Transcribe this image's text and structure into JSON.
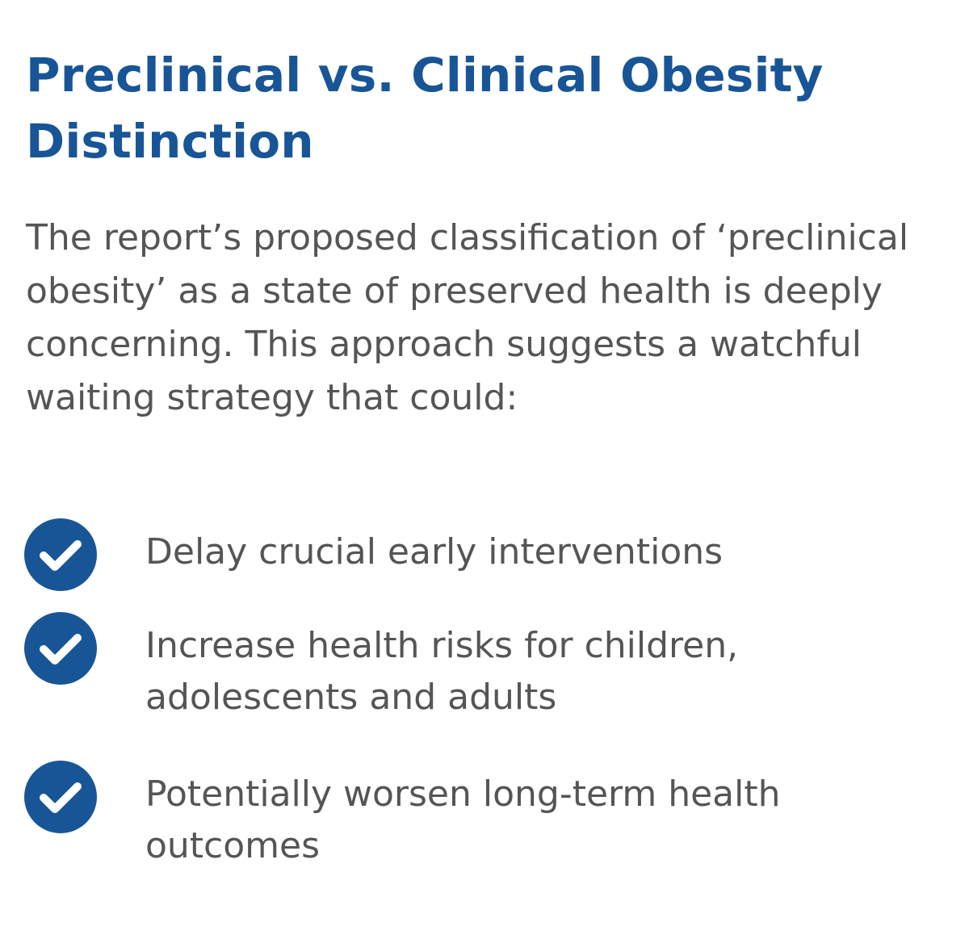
{
  "section": {
    "title": "Preclinical vs. Clinical Obesity Distinction",
    "intro": "The report’s proposed classification of ‘preclinical obesity’ as a state of preserved health is deeply concerning. This approach suggests a watchful waiting strategy that could:"
  },
  "checklist": {
    "icon": "check-circle-icon",
    "accent_color": "#185597",
    "items": [
      {
        "text": "Delay crucial early interventions"
      },
      {
        "text": "Increase health risks for children, adolescents and adults"
      },
      {
        "text": "Potentially worsen long-term health outcomes"
      }
    ]
  }
}
